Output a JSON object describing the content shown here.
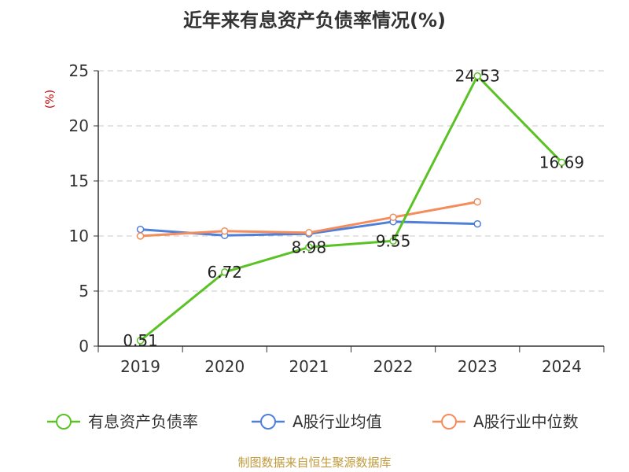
{
  "chart_data": {
    "type": "line",
    "title": "近年来有息资产负债率情况(%)",
    "y_unit": "(%)",
    "y_unit_color": "#cc0000",
    "categories": [
      "2019",
      "2020",
      "2021",
      "2022",
      "2023",
      "2024"
    ],
    "ylim": [
      0,
      25
    ],
    "yticks": [
      0,
      5,
      10,
      15,
      20,
      25
    ],
    "grid": true,
    "legend_position": "bottom",
    "series": [
      {
        "name": "有息资产负债率",
        "color": "#5bc225",
        "values": [
          0.51,
          6.72,
          8.98,
          9.55,
          24.53,
          16.69
        ],
        "labels": [
          "0.51",
          "6.72",
          "8.98",
          "9.55",
          "24.53",
          "16.69"
        ],
        "show_labels": true
      },
      {
        "name": "A股行业均值",
        "color": "#4f7fd8",
        "values": [
          10.6,
          10.05,
          10.2,
          11.3,
          11.1,
          null
        ],
        "show_labels": false
      },
      {
        "name": "A股行业中位数",
        "color": "#f48c5c",
        "values": [
          10.0,
          10.45,
          10.3,
          11.7,
          13.1,
          null
        ],
        "show_labels": false
      }
    ],
    "source": "制图数据来自恒生聚源数据库",
    "source_color": "#c09a3c"
  }
}
